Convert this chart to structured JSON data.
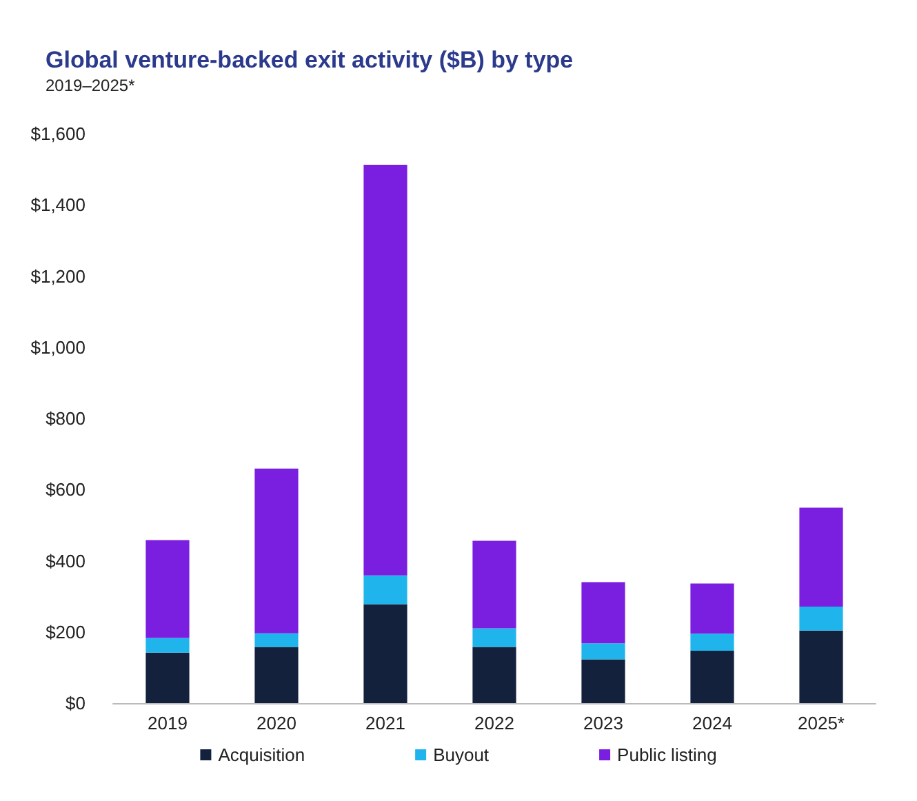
{
  "chart_data": {
    "type": "bar",
    "title": "Global venture-backed exit activity ($B) by type",
    "subtitle": "2019–2025*",
    "stacked": true,
    "categories": [
      "2019",
      "2020",
      "2021",
      "2022",
      "2023",
      "2024",
      "2025*"
    ],
    "series": [
      {
        "name": "Acquisition",
        "color": "#14213d",
        "values": [
          142,
          158,
          278,
          158,
          123,
          147,
          204
        ]
      },
      {
        "name": "Buyout",
        "color": "#1fb5ec",
        "values": [
          41,
          38,
          81,
          52,
          45,
          48,
          67
        ]
      },
      {
        "name": "Public listing",
        "color": "#7a1fe0",
        "values": [
          275,
          463,
          1154,
          246,
          172,
          141,
          278
        ]
      }
    ],
    "ylim": [
      0,
      1600
    ],
    "yticks": [
      {
        "value": 0,
        "label": "$0"
      },
      {
        "value": 200,
        "label": "$200"
      },
      {
        "value": 400,
        "label": "$400"
      },
      {
        "value": 600,
        "label": "$600"
      },
      {
        "value": 800,
        "label": "$800"
      },
      {
        "value": 1000,
        "label": "$1,000"
      },
      {
        "value": 1200,
        "label": "$1,200"
      },
      {
        "value": 1400,
        "label": "$1,400"
      },
      {
        "value": 1600,
        "label": "$1,600"
      }
    ],
    "grid": false,
    "legend": "bottom"
  }
}
